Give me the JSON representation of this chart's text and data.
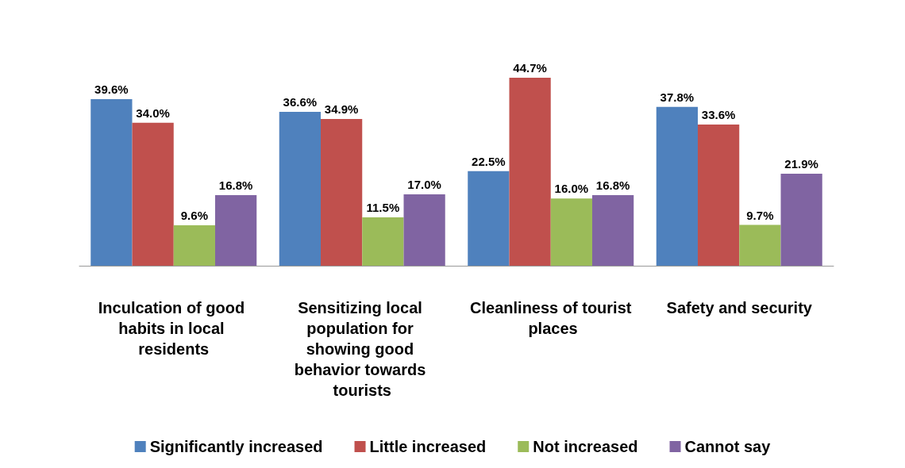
{
  "chart_data": {
    "type": "bar",
    "categories": [
      "Inculcation of good habits in local residents",
      "Sensitizing local population for showing good behavior towards tourists",
      "Cleanliness of tourist places",
      "Safety and security"
    ],
    "series": [
      {
        "name": "Significantly increased",
        "color": "#4f81bd",
        "values": [
          39.6,
          36.6,
          22.5,
          37.8
        ],
        "value_labels": [
          "39.6%",
          "36.6%",
          "22.5%",
          "37.8%"
        ]
      },
      {
        "name": "Little increased",
        "color": "#c0504d",
        "values": [
          34.0,
          34.9,
          44.7,
          33.6
        ],
        "value_labels": [
          "34.0%",
          "34.9%",
          "44.7%",
          "33.6%"
        ]
      },
      {
        "name": "Not increased",
        "color": "#9bbb59",
        "values": [
          9.6,
          11.5,
          16.0,
          9.7
        ],
        "value_labels": [
          "9.6%",
          "11.5%",
          "16.0%",
          "9.7%"
        ]
      },
      {
        "name": "Cannot say",
        "color": "#8064a2",
        "values": [
          16.8,
          17.0,
          16.8,
          21.9
        ],
        "value_labels": [
          "16.8%",
          "17.0%",
          "16.8%",
          "21.9%"
        ]
      }
    ],
    "legend": "bottom",
    "grid": false,
    "tick_labels": "x"
  }
}
